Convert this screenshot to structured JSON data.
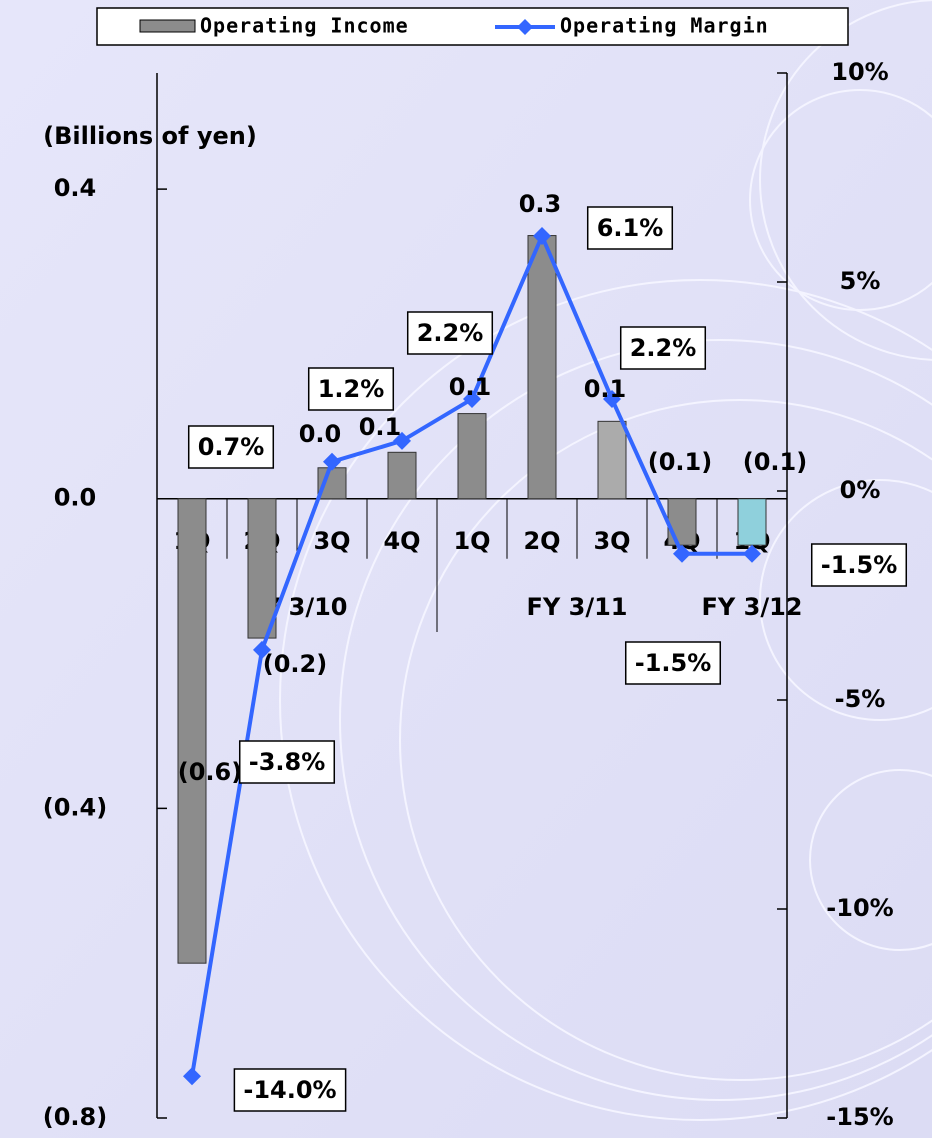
{
  "chart_data": {
    "type": "bar",
    "y_label": "(Billions of yen)",
    "categories": [
      "1Q",
      "2Q",
      "3Q",
      "4Q",
      "1Q",
      "2Q",
      "3Q",
      "4Q",
      "1Q"
    ],
    "groups": [
      "FY 3/10",
      "FY 3/11",
      "FY 3/12"
    ],
    "series": [
      {
        "name": "Operating Income",
        "type": "bar",
        "color": "#8c8c8c",
        "colors": [
          "#8c8c8c",
          "#8c8c8c",
          "#8c8c8c",
          "#8c8c8c",
          "#8c8c8c",
          "#8c8c8c",
          "#ababab",
          "#8c8c8c",
          "#8fd0dc"
        ],
        "values": [
          -0.6,
          -0.18,
          0.04,
          0.06,
          0.11,
          0.34,
          0.1,
          -0.06,
          -0.06
        ],
        "value_labels": [
          "(0.6)",
          "(0.2)",
          "0.0",
          "0.1",
          "0.1",
          "0.3",
          "0.1",
          "(0.1)",
          "(0.1)"
        ]
      },
      {
        "name": "Operating Margin",
        "type": "line",
        "axis": "y2",
        "color": "#3366ff",
        "values": [
          -14.0,
          -3.8,
          0.7,
          1.2,
          2.2,
          6.1,
          2.2,
          -1.5,
          -1.5
        ],
        "value_labels": [
          "-14.0%",
          "-3.8%",
          "0.7%",
          "1.2%",
          "2.2%",
          "6.1%",
          "2.2%",
          "-1.5%",
          "-1.5%"
        ]
      }
    ],
    "ylim": [
      -0.8,
      0.55
    ],
    "yticks": [
      {
        "value": 0.4,
        "label": "0.4"
      },
      {
        "value": 0,
        "label": "0.0"
      },
      {
        "value": -0.4,
        "label": "(0.4)"
      },
      {
        "value": -0.8,
        "label": "(0.8)"
      }
    ],
    "y2lim": [
      -15,
      10
    ],
    "y2ticks": [
      {
        "value": 10,
        "label": "10%"
      },
      {
        "value": 5,
        "label": "5%"
      },
      {
        "value": 0,
        "label": "0%"
      },
      {
        "value": -5,
        "label": "-5%"
      },
      {
        "value": -10,
        "label": "-10%"
      },
      {
        "value": -15,
        "label": "-15%"
      }
    ],
    "negative_color": "#ff0000"
  }
}
